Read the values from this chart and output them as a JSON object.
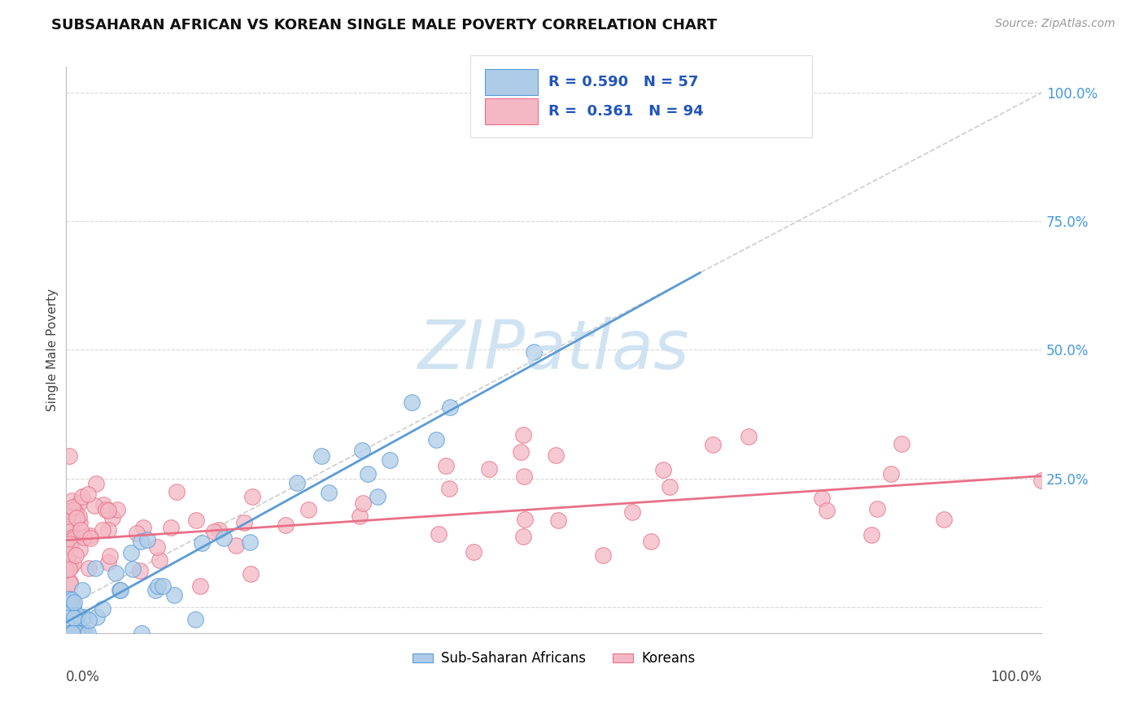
{
  "title": "SUBSAHARAN AFRICAN VS KOREAN SINGLE MALE POVERTY CORRELATION CHART",
  "source": "Source: ZipAtlas.com",
  "ylabel": "Single Male Poverty",
  "legend_labels": [
    "Sub-Saharan Africans",
    "Koreans"
  ],
  "R_blue": 0.59,
  "N_blue": 57,
  "R_pink": 0.361,
  "N_pink": 94,
  "blue_color": "#5b9bd5",
  "pink_color": "#e87088",
  "blue_fill": "#aecce8",
  "pink_fill": "#f4b8c4",
  "watermark_color": "#c8dff0",
  "grid_color": "#d8d8d8",
  "ref_line_color": "#c0c0c0",
  "xlim": [
    0.0,
    1.0
  ],
  "ylim": [
    -0.05,
    1.05
  ],
  "ytick_positions": [
    0.0,
    0.25,
    0.5,
    0.75,
    1.0
  ],
  "ytick_labels": [
    "",
    "25.0%",
    "50.0%",
    "75.0%",
    "100.0%"
  ],
  "title_fontsize": 13,
  "source_fontsize": 10,
  "axis_label_fontsize": 11,
  "tick_fontsize": 12
}
